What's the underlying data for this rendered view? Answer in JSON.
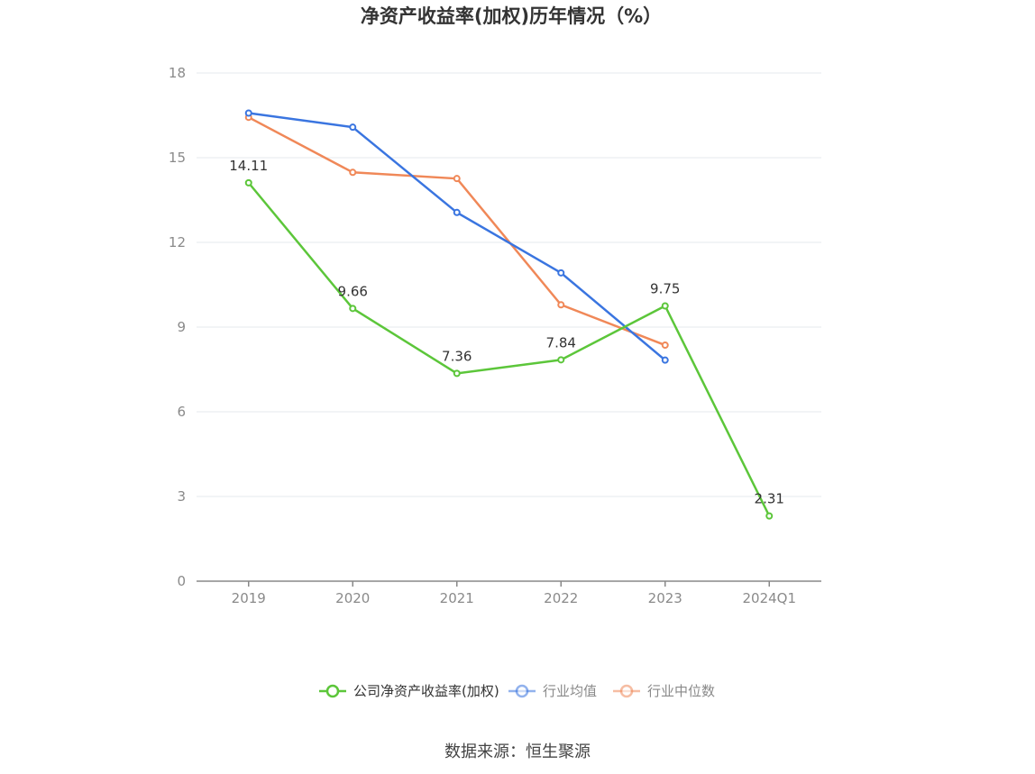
{
  "chart_data": {
    "type": "line",
    "title": "净资产收益率(加权)历年情况（%）",
    "categories": [
      "2019",
      "2020",
      "2021",
      "2022",
      "2023",
      "2024Q1"
    ],
    "ylim": [
      0,
      18
    ],
    "yticks": [
      0,
      3,
      6,
      9,
      12,
      15,
      18
    ],
    "grid": true,
    "legend_position": "bottom",
    "series": [
      {
        "name": "公司净资产收益率(加权)",
        "color": "#5cc63a",
        "values": [
          14.11,
          9.66,
          7.36,
          7.84,
          9.75,
          2.31
        ],
        "show_labels": true
      },
      {
        "name": "行业均值",
        "color": "#3a75e0",
        "values": [
          16.58,
          16.08,
          13.06,
          10.92,
          7.83,
          null
        ],
        "show_labels": false
      },
      {
        "name": "行业中位数",
        "color": "#f08858",
        "values": [
          16.43,
          14.48,
          14.26,
          9.79,
          8.36,
          null
        ],
        "show_labels": false
      }
    ],
    "source": "数据来源：恒生聚源"
  }
}
